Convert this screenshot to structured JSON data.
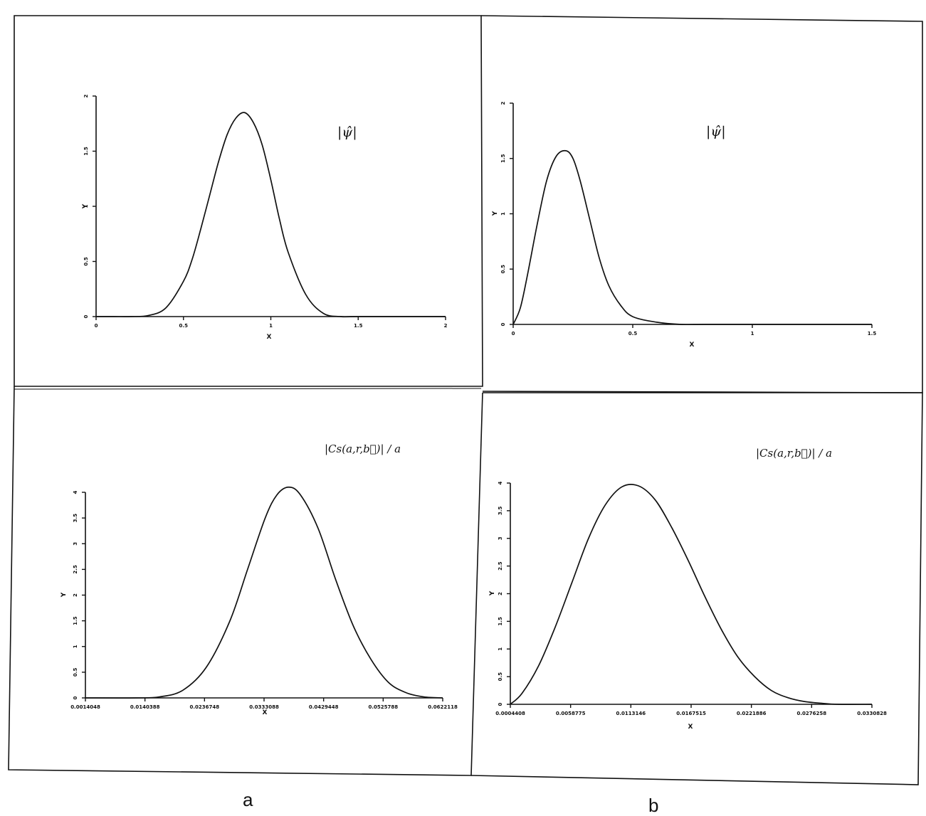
{
  "captions": {
    "left": "a",
    "right": "b"
  },
  "chart_data": [
    {
      "type": "line",
      "annotation": "|ψ̂|",
      "xlabel": "X",
      "ylabel": "Y",
      "xlim": [
        0,
        2
      ],
      "ylim": [
        0,
        2
      ],
      "x_ticks": [
        "0",
        "0.5",
        "1",
        "1.5",
        "2"
      ],
      "y_ticks": [
        "0",
        "0.5",
        "1",
        "1.5",
        "2"
      ],
      "series": [
        {
          "x": [
            0.0,
            0.1,
            0.2,
            0.3,
            0.4,
            0.5,
            0.55,
            0.6,
            0.65,
            0.7,
            0.75,
            0.8,
            0.85,
            0.9,
            0.95,
            1.0,
            1.05,
            1.1,
            1.2,
            1.3,
            1.4,
            1.5,
            2.0
          ],
          "y": [
            0.0,
            0.0,
            0.0,
            0.01,
            0.08,
            0.32,
            0.52,
            0.8,
            1.1,
            1.4,
            1.65,
            1.8,
            1.85,
            1.76,
            1.56,
            1.24,
            0.88,
            0.58,
            0.2,
            0.03,
            0.0,
            0.0,
            0.0
          ]
        }
      ]
    },
    {
      "type": "line",
      "annotation": "|ψ̂|",
      "xlabel": "X",
      "ylabel": "Y",
      "xlim": [
        0,
        1.5
      ],
      "ylim": [
        0,
        2
      ],
      "x_ticks": [
        "0",
        "0.5",
        "1",
        "1.5"
      ],
      "y_ticks": [
        "0",
        "0.5",
        "1",
        "1.5",
        "2"
      ],
      "series": [
        {
          "x": [
            0.0,
            0.03,
            0.06,
            0.1,
            0.14,
            0.18,
            0.22,
            0.25,
            0.28,
            0.32,
            0.36,
            0.4,
            0.45,
            0.5,
            0.6,
            0.7,
            0.8,
            1.0,
            1.5
          ],
          "y": [
            0.0,
            0.15,
            0.45,
            0.9,
            1.3,
            1.52,
            1.57,
            1.5,
            1.3,
            0.95,
            0.6,
            0.35,
            0.17,
            0.07,
            0.02,
            0.0,
            0.0,
            0.0,
            0.0
          ]
        }
      ]
    },
    {
      "type": "line",
      "annotation": "|Cs(a,r,b⃗)| / a",
      "xlabel": "X",
      "ylabel": "Y",
      "xlim": [
        0.0014048,
        0.0622118
      ],
      "ylim": [
        0,
        4
      ],
      "x_ticks": [
        "0.0014048",
        "0.0140388",
        "0.0236748",
        "0.0333088",
        "0.0429448",
        "0.0525788",
        "0.0622118"
      ],
      "y_ticks": [
        "0",
        "0.5",
        "1",
        "1.5",
        "2",
        "2.5",
        "3",
        "3.5",
        "4"
      ],
      "series": [
        {
          "x": [
            0.0014048,
            0.01,
            0.014,
            0.018,
            0.022,
            0.026,
            0.029,
            0.032,
            0.034,
            0.036,
            0.038,
            0.041,
            0.044,
            0.047,
            0.05,
            0.053,
            0.056,
            0.059,
            0.0622118
          ],
          "y": [
            0.0,
            0.0,
            0.02,
            0.15,
            0.6,
            1.5,
            2.5,
            3.5,
            3.95,
            4.1,
            3.95,
            3.3,
            2.3,
            1.4,
            0.75,
            0.3,
            0.1,
            0.02,
            0.0
          ]
        }
      ]
    },
    {
      "type": "line",
      "annotation": "|Cs(a,r,b⃗)| / a",
      "xlabel": "X",
      "ylabel": "Y",
      "xlim": [
        0.0004408,
        0.0330828
      ],
      "ylim": [
        0,
        4
      ],
      "x_ticks": [
        "0.0004408",
        "0.0058775",
        "0.0113146",
        "0.0167515",
        "0.0221886",
        "0.0276258",
        "0.0330828"
      ],
      "y_ticks": [
        "0",
        "0.5",
        "1",
        "1.5",
        "2",
        "2.5",
        "3",
        "3.5",
        "4"
      ],
      "series": [
        {
          "x": [
            0.0004408,
            0.0015,
            0.003,
            0.0045,
            0.006,
            0.0075,
            0.009,
            0.0105,
            0.012,
            0.0135,
            0.015,
            0.0165,
            0.018,
            0.0195,
            0.021,
            0.0225,
            0.024,
            0.0255,
            0.027,
            0.0285,
            0.03,
            0.0330828
          ],
          "y": [
            0.0,
            0.2,
            0.7,
            1.4,
            2.2,
            3.0,
            3.6,
            3.93,
            3.95,
            3.7,
            3.2,
            2.6,
            1.95,
            1.35,
            0.85,
            0.5,
            0.25,
            0.12,
            0.05,
            0.02,
            0.0,
            0.0
          ]
        }
      ]
    }
  ]
}
